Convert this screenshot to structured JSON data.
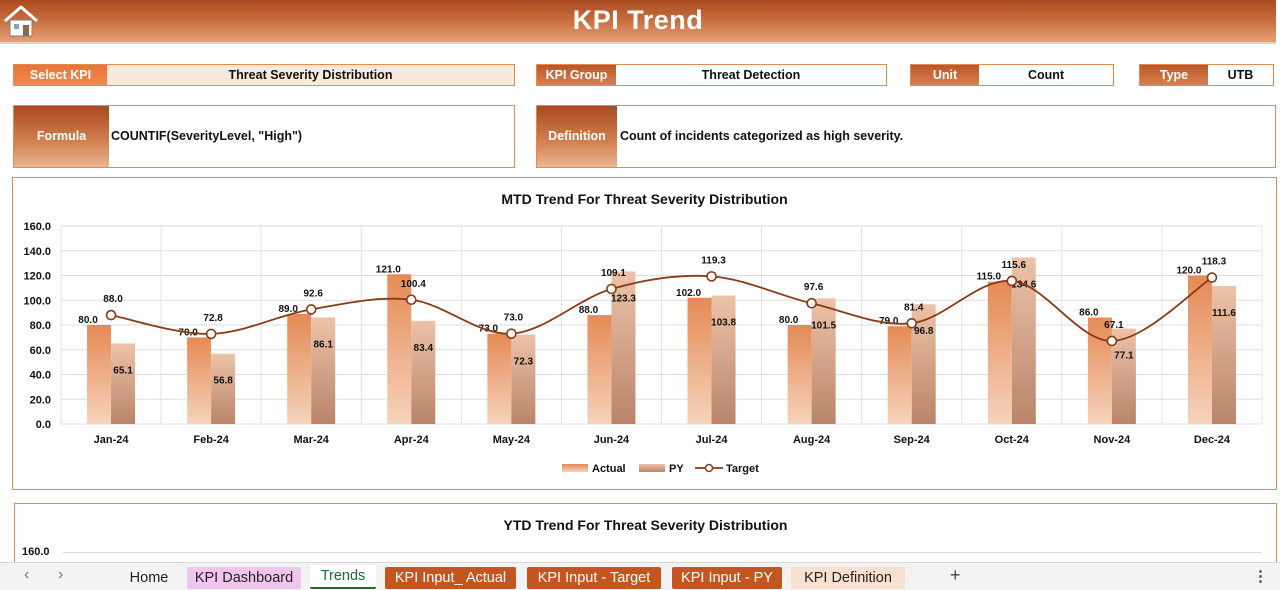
{
  "header": {
    "title": "KPI Trend",
    "home_icon": "home-icon"
  },
  "selectors": {
    "select_kpi": {
      "label": "Select KPI",
      "value": "Threat Severity Distribution"
    },
    "kpi_group": {
      "label": "KPI Group",
      "value": "Threat Detection"
    },
    "unit": {
      "label": "Unit",
      "value": "Count"
    },
    "type": {
      "label": "Type",
      "value": "UTB"
    }
  },
  "formula": {
    "label": "Formula",
    "value": "COUNTIF(SeverityLevel, \"High\")"
  },
  "definition": {
    "label": "Definition",
    "value": "Count of incidents categorized as high severity."
  },
  "colors": {
    "accent": "#c9703f",
    "actual": "#e0895a",
    "py": "#e8bea2",
    "target": "#8a3a14"
  },
  "chart_data": [
    {
      "type": "bar",
      "title": "MTD Trend For Threat Severity Distribution",
      "categories": [
        "Jan-24",
        "Feb-24",
        "Mar-24",
        "Apr-24",
        "May-24",
        "Jun-24",
        "Jul-24",
        "Aug-24",
        "Sep-24",
        "Oct-24",
        "Nov-24",
        "Dec-24"
      ],
      "ylim": [
        0,
        160
      ],
      "yticks": [
        "0.0",
        "20.0",
        "40.0",
        "60.0",
        "80.0",
        "100.0",
        "120.0",
        "140.0",
        "160.0"
      ],
      "grid": true,
      "legend": "bottom",
      "series": [
        {
          "name": "Actual",
          "type": "bar",
          "values": [
            80.0,
            70.0,
            89.0,
            121.0,
            73.0,
            88.0,
            102.0,
            80.0,
            79.0,
            115.0,
            86.0,
            120.0
          ],
          "labels": [
            "80.0",
            "70.0",
            "89.0",
            "121.0",
            "73.0",
            "88.0",
            "102.0",
            "80.0",
            "79.0",
            "115.0",
            "86.0",
            "120.0"
          ]
        },
        {
          "name": "PY",
          "type": "bar",
          "values": [
            65.1,
            56.8,
            86.1,
            83.4,
            72.3,
            123.3,
            103.8,
            101.5,
            96.8,
            134.6,
            77.1,
            111.6
          ],
          "labels": [
            "65.1",
            "56.8",
            "86.1",
            "83.4",
            "72.3",
            "123.3",
            "103.8",
            "101.5",
            "96.8",
            "134.6",
            "77.1",
            "111.6"
          ]
        },
        {
          "name": "Target",
          "type": "line",
          "values": [
            88.0,
            72.8,
            92.6,
            100.4,
            73.0,
            109.1,
            119.3,
            97.6,
            81.4,
            115.6,
            67.1,
            118.3
          ],
          "labels": [
            "88.0",
            "72.8",
            "92.6",
            "100.4",
            "73.0",
            "109.1",
            "119.3",
            "97.6",
            "81.4",
            "115.6",
            "67.1",
            "118.3"
          ]
        }
      ]
    },
    {
      "type": "bar",
      "title": "YTD Trend For Threat Severity Distribution",
      "yticks": [
        "160.0"
      ]
    }
  ],
  "tabs": {
    "prev": "‹",
    "next": "›",
    "add": "+",
    "more": "⋮",
    "items": [
      {
        "label": "Home"
      },
      {
        "label": "KPI Dashboard"
      },
      {
        "label": "Trends"
      },
      {
        "label": "KPI Input_ Actual"
      },
      {
        "label": "KPI Input - Target"
      },
      {
        "label": "KPI Input - PY"
      },
      {
        "label": "KPI Definition"
      }
    ]
  }
}
